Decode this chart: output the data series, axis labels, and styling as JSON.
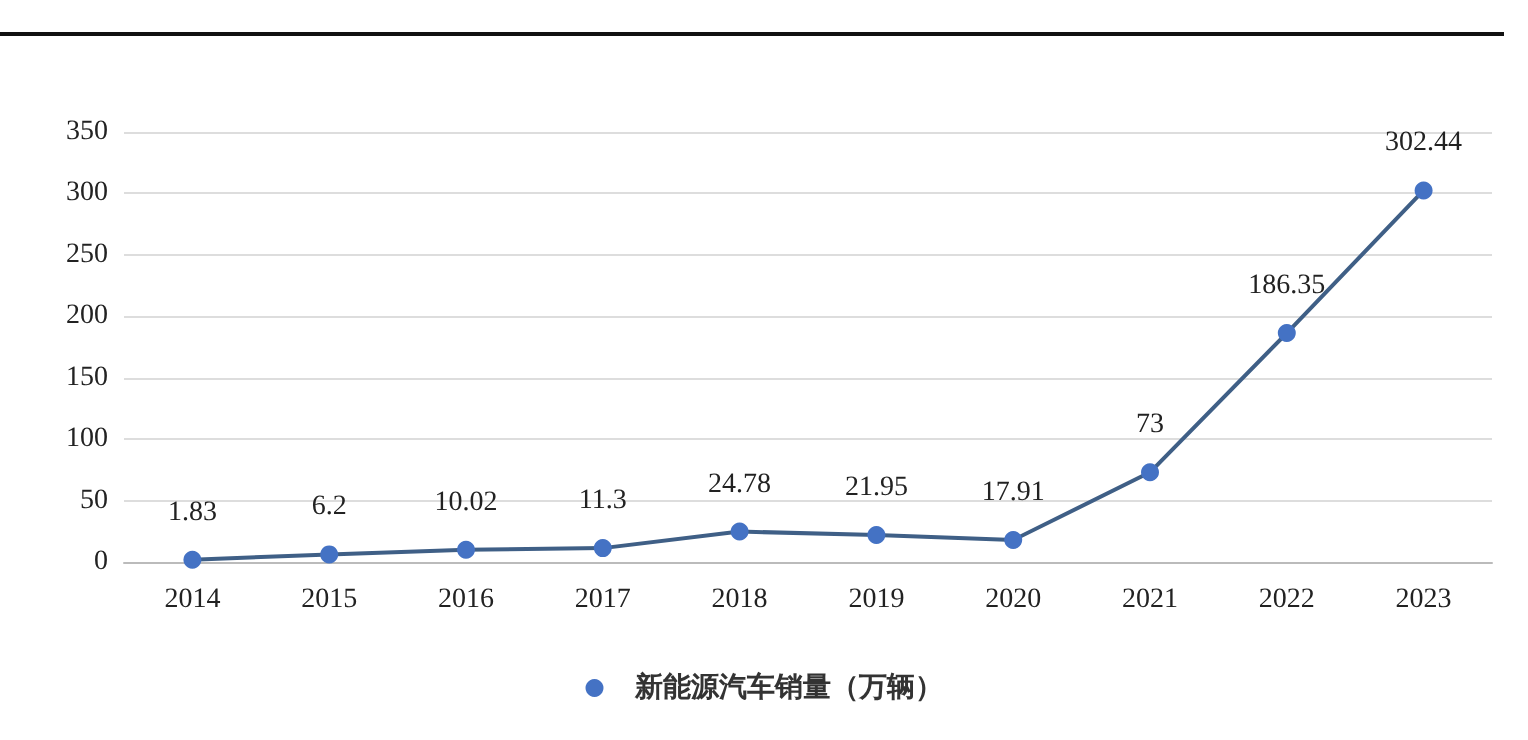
{
  "chart_data": {
    "type": "line",
    "categories": [
      "2014",
      "2015",
      "2016",
      "2017",
      "2018",
      "2019",
      "2020",
      "2021",
      "2022",
      "2023"
    ],
    "series": [
      {
        "name": "新能源汽车销量（万辆）",
        "color": "#4472c4",
        "values": [
          1.83,
          6.2,
          10.02,
          11.3,
          24.78,
          21.95,
          17.91,
          73,
          186.35,
          302.44
        ]
      }
    ],
    "ylim": [
      0,
      350
    ],
    "yticks": [
      0,
      50,
      100,
      150,
      200,
      250,
      300,
      350
    ],
    "grid": "y",
    "legend": "bottom",
    "marker": "circle",
    "line_style": "solid",
    "data_labels": true
  }
}
